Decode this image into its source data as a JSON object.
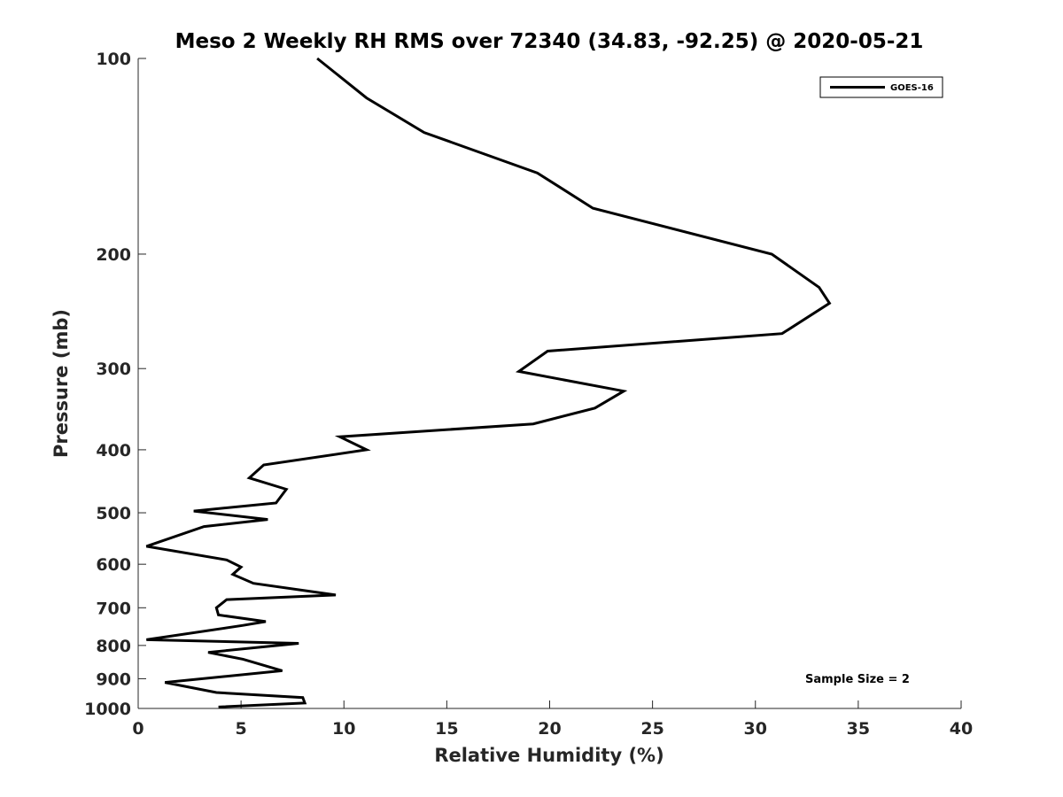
{
  "chart_data": {
    "type": "line",
    "title": "Meso 2 Weekly RH RMS over 72340 (34.83, -92.25) @ 2020-05-21",
    "xlabel": "Relative Humidity (%)",
    "ylabel": "Pressure (mb)",
    "xlim": [
      0,
      40
    ],
    "ylim": [
      1000,
      100
    ],
    "yscale": "log",
    "y_reversed": true,
    "grid": false,
    "legend_position": "top-right",
    "x_ticks": [
      0,
      5,
      10,
      15,
      20,
      25,
      30,
      35,
      40
    ],
    "y_ticks": [
      100,
      200,
      300,
      400,
      500,
      600,
      700,
      800,
      900,
      1000
    ],
    "series": [
      {
        "name": "GOES-16",
        "color": "#000000",
        "x": [
          8.7,
          11.1,
          13.9,
          19.4,
          22.1,
          30.8,
          33.1,
          33.6,
          31.3,
          19.9,
          18.5,
          23.6,
          22.2,
          19.2,
          9.8,
          11.1,
          6.1,
          5.4,
          7.2,
          6.7,
          2.7,
          6.3,
          3.2,
          0.4,
          4.3,
          5.0,
          4.6,
          5.6,
          9.6,
          4.3,
          3.8,
          3.9,
          6.2,
          5.1,
          0.4,
          7.8,
          3.4,
          5.1,
          7.0,
          1.3,
          3.8,
          8.0,
          8.1,
          3.9
        ],
        "y": [
          100,
          115,
          130,
          150,
          170,
          200,
          225,
          238,
          265,
          282,
          303,
          325,
          345,
          365,
          382,
          400,
          422,
          442,
          460,
          483,
          497,
          512,
          525,
          563,
          591,
          606,
          622,
          642,
          669,
          680,
          700,
          718,
          735,
          745,
          784,
          794,
          820,
          840,
          875,
          912,
          945,
          962,
          981,
          995
        ]
      }
    ],
    "annotations": [
      "Sample Size = 2"
    ]
  }
}
